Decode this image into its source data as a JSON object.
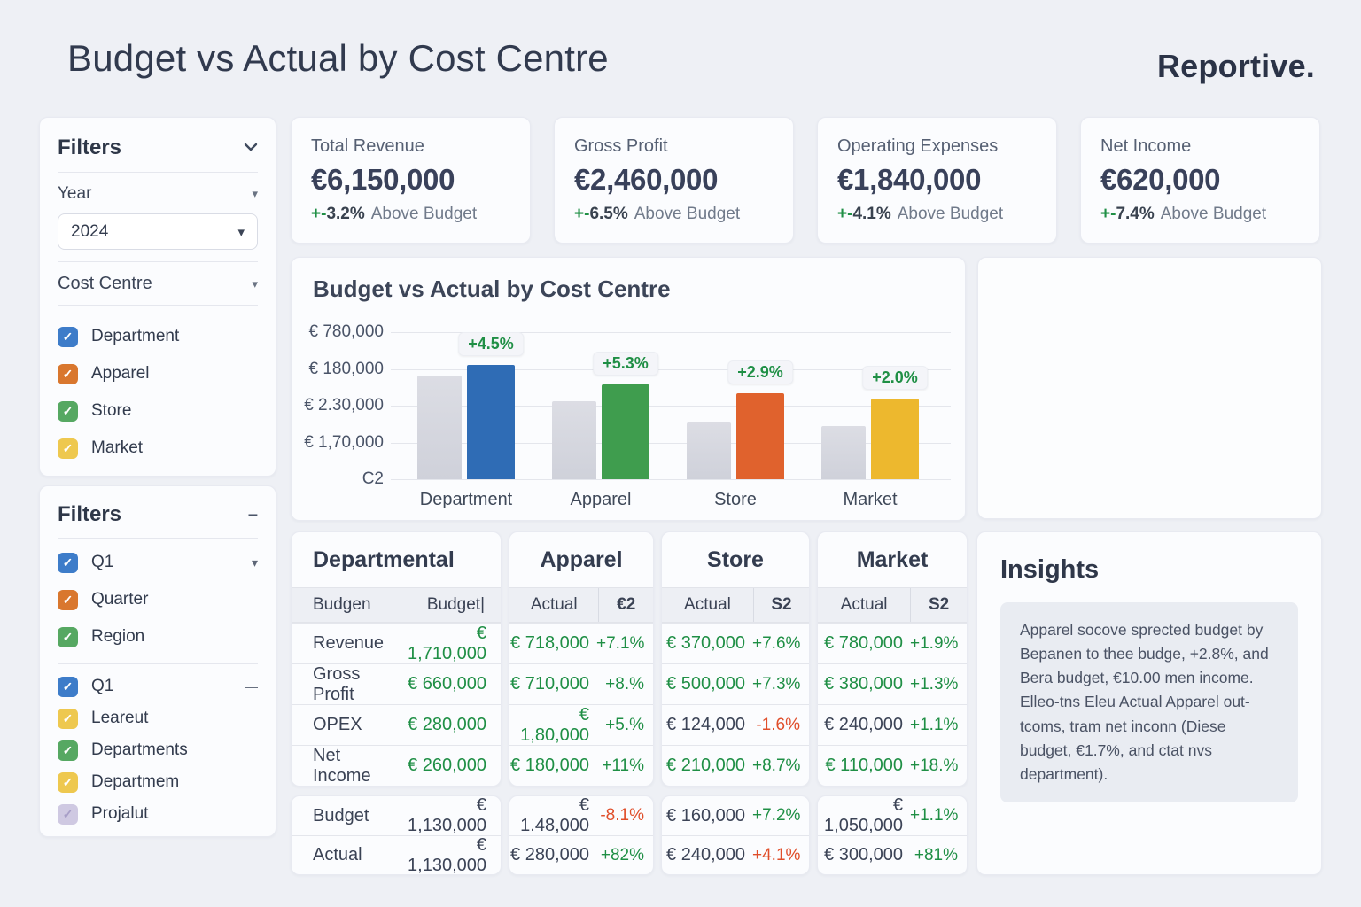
{
  "header": {
    "title": "Budget vs Actual by Cost Centre",
    "brand": "Reportive."
  },
  "theme": {
    "green": "#1f8f45",
    "red": "#e04e2a",
    "dark": "#3b4356",
    "accent_blue": "#2f6cb5",
    "accent_green": "#3f9d4e",
    "accent_orange": "#e0622d",
    "accent_yellow": "#edb82e",
    "budget_gray": "#d5d7df"
  },
  "kpis": [
    {
      "label": "Total Revenue",
      "value": "€6,150,000",
      "delta_sign": "+-",
      "delta_pct": "3.2%",
      "delta_note": "Above Budget"
    },
    {
      "label": "Gross Profit",
      "value": "€2,460,000",
      "delta_sign": "+-",
      "delta_pct": "6.5%",
      "delta_note": "Above Budget"
    },
    {
      "label": "Operating Expenses",
      "value": "€1,840,000",
      "delta_sign": "+-",
      "delta_pct": "4.1%",
      "delta_note": "Above Budget"
    },
    {
      "label": "Net Income",
      "value": "€620,000",
      "delta_sign": "+-",
      "delta_pct": "7.4%",
      "delta_note": "Above Budget"
    }
  ],
  "sidebar": {
    "panel1": {
      "title": "Filters",
      "year_label": "Year",
      "year_value": "2024",
      "cost_centre_label": "Cost Centre",
      "checkboxes": [
        {
          "label": "Department",
          "color": "#3d7cc9"
        },
        {
          "label": "Apparel",
          "color": "#d9772e"
        },
        {
          "label": "Store",
          "color": "#56a862"
        },
        {
          "label": "Market",
          "color": "#eec84f"
        }
      ]
    },
    "panel2": {
      "title": "Filters",
      "group1": [
        {
          "label": "Q1",
          "color": "#3d7cc9",
          "trailing": "▾"
        },
        {
          "label": "Quarter",
          "color": "#d9772e"
        },
        {
          "label": "Region",
          "color": "#56a862"
        }
      ],
      "group2": [
        {
          "label": "Q1",
          "color": "#3d7cc9",
          "trailing": "—"
        },
        {
          "label": "Leareut",
          "color": "#eec84f"
        },
        {
          "label": "Departments",
          "color": "#56a862"
        },
        {
          "label": "Departmem",
          "color": "#eec84f"
        },
        {
          "label": "Projalut",
          "color": "#cfc9e2",
          "check_color": "#a79ec7"
        }
      ]
    }
  },
  "chart_data": {
    "type": "bar",
    "title": "Budget vs Actual by Cost Centre",
    "categories": [
      "Department",
      "Apparel",
      "Store",
      "Market"
    ],
    "series": [
      {
        "name": "Budget",
        "values": [
          440000,
          330000,
          240000,
          225000
        ]
      },
      {
        "name": "Actual",
        "values": [
          485000,
          400000,
          365000,
          340000
        ]
      }
    ],
    "actual_colors": [
      "#2f6cb5",
      "#3f9d4e",
      "#e0622d",
      "#edb82e"
    ],
    "delta_labels": [
      "+4.5%",
      "+5.3%",
      "+2.9%",
      "+2.0%"
    ],
    "y_tick_labels": [
      "€ 780,000",
      "€ 180,000",
      "€ 2.30,000",
      "€ 1,70,000",
      "C2"
    ],
    "ylim": [
      0,
      630000
    ],
    "grid": true,
    "legend": "none"
  },
  "tables": [
    {
      "title": "Departmental",
      "layout": "pair",
      "title_align": "left",
      "header": [
        "Budgen",
        "Budget|"
      ],
      "rows": [
        {
          "label": "Revenue",
          "value": "€ 1,710,000",
          "value_color": "green"
        },
        {
          "label": "Gross Profit",
          "value": "€ 660,000",
          "value_color": "green"
        },
        {
          "label": "OPEX",
          "value": "€ 280,000",
          "value_color": "green"
        },
        {
          "label": "Net Income",
          "value": "€ 260,000",
          "value_color": "green"
        }
      ],
      "footer": [
        {
          "label": "Budget",
          "value": "€ 1,130,000",
          "value_color": "dark"
        },
        {
          "label": "Actual",
          "value": "€ 1,130,000",
          "value_color": "dark"
        }
      ]
    },
    {
      "title": "Apparel",
      "layout": "numeric",
      "title_align": "center",
      "header": [
        "Actual",
        "€2"
      ],
      "rows": [
        {
          "value": "€ 718,000",
          "delta": "+7.1%",
          "value_color": "green",
          "delta_color": "green"
        },
        {
          "value": "€ 710,000",
          "delta": "+8.%",
          "value_color": "green",
          "delta_color": "green"
        },
        {
          "value": "€ 1,80,000",
          "delta": "+5.%",
          "value_color": "green",
          "delta_color": "green"
        },
        {
          "value": "€ 180,000",
          "delta": "+11%",
          "value_color": "green",
          "delta_color": "green"
        }
      ],
      "footer": [
        {
          "value": "€ 1.48,000",
          "delta": "-8.1%",
          "value_color": "dark",
          "delta_color": "red"
        },
        {
          "value": "€ 280,000",
          "delta": "+82%",
          "value_color": "dark",
          "delta_color": "green"
        }
      ]
    },
    {
      "title": "Store",
      "layout": "numeric",
      "title_align": "center",
      "header": [
        "Actual",
        "S2"
      ],
      "rows": [
        {
          "value": "€ 370,000",
          "delta": "+7.6%",
          "value_color": "green",
          "delta_color": "green"
        },
        {
          "value": "€ 500,000",
          "delta": "+7.3%",
          "value_color": "green",
          "delta_color": "green"
        },
        {
          "value": "€ 124,000",
          "delta": "-1.6%",
          "value_color": "dark",
          "delta_color": "red"
        },
        {
          "value": "€ 210,000",
          "delta": "+8.7%",
          "value_color": "green",
          "delta_color": "green"
        }
      ],
      "footer": [
        {
          "value": "€ 160,000",
          "delta": "+7.2%",
          "value_color": "dark",
          "delta_color": "green"
        },
        {
          "value": "€ 240,000",
          "delta": "+4.1%",
          "value_color": "dark",
          "delta_color": "red"
        }
      ]
    },
    {
      "title": "Market",
      "layout": "numeric",
      "title_align": "center",
      "header": [
        "Actual",
        "S2"
      ],
      "rows": [
        {
          "value": "€ 780,000",
          "delta": "+1.9%",
          "value_color": "green",
          "delta_color": "green"
        },
        {
          "value": "€ 380,000",
          "delta": "+1.3%",
          "value_color": "green",
          "delta_color": "green"
        },
        {
          "value": "€ 240,000",
          "delta": "+1.1%",
          "value_color": "dark",
          "delta_color": "green"
        },
        {
          "value": "€ 110,000",
          "delta": "+18.%",
          "value_color": "green",
          "delta_color": "green"
        }
      ],
      "footer": [
        {
          "value": "€ 1,050,000",
          "delta": "+1.1%",
          "value_color": "dark",
          "delta_color": "green"
        },
        {
          "value": "€ 300,000",
          "delta": "+81%",
          "value_color": "dark",
          "delta_color": "green"
        }
      ]
    }
  ],
  "insights": {
    "title": "Insights",
    "body": "Apparel socove sprected budget by Bepanen to thee budge, +2.8%, and Bera budget, €10.00 men income. Elleo-tns Eleu Actual Apparel out-tcoms, tram net inconn (Diese budget, €1.7%, and ctat nvs department)."
  }
}
